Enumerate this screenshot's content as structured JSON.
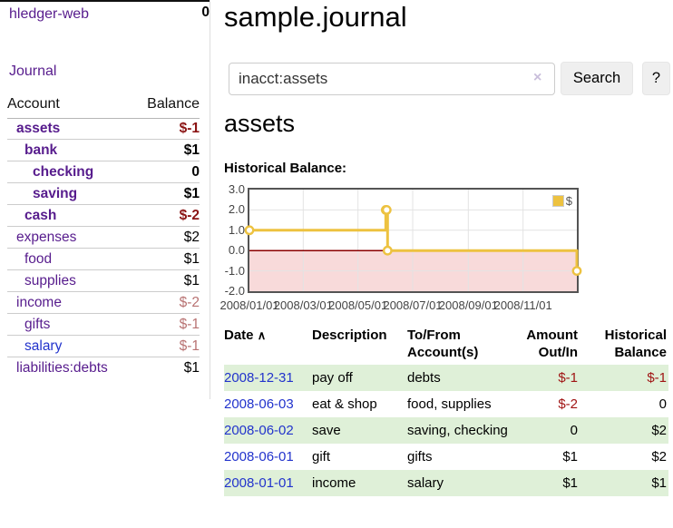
{
  "app": {
    "title": "hledger-web"
  },
  "colors": {
    "link_purple": "#571c8d",
    "link_blue": "#2233cc",
    "negative_bold_red": "#8b1414",
    "negative_table_red": "#a01414",
    "negative_faded_rose": "#b87272",
    "row_stripe_green": "#dff0d8",
    "chart_line_gold": "#EDC240",
    "chart_negative_pink": "#f8dada",
    "chart_zero_line": "#8b0000"
  },
  "sidebar": {
    "nav_journal": "Journal",
    "accounts_header": {
      "account": "Account",
      "balance": "Balance"
    },
    "accounts": [
      {
        "label": "assets",
        "indent": 0,
        "bold": true,
        "link": "purple",
        "balance": "$-1",
        "balance_style": "neg"
      },
      {
        "label": "bank",
        "indent": 1,
        "bold": true,
        "link": "purple",
        "balance": "$1",
        "balance_style": ""
      },
      {
        "label": "checking",
        "indent": 2,
        "bold": true,
        "link": "purple",
        "balance": "0",
        "balance_style": ""
      },
      {
        "label": "saving",
        "indent": 2,
        "bold": true,
        "link": "purple",
        "balance": "$1",
        "balance_style": ""
      },
      {
        "label": "cash",
        "indent": 1,
        "bold": true,
        "link": "purple",
        "balance": "$-2",
        "balance_style": "neg"
      },
      {
        "label": "expenses",
        "indent": 0,
        "bold": false,
        "link": "purple",
        "balance": "$2",
        "balance_style": ""
      },
      {
        "label": "food",
        "indent": 1,
        "bold": false,
        "link": "purple",
        "balance": "$1",
        "balance_style": ""
      },
      {
        "label": "supplies",
        "indent": 1,
        "bold": false,
        "link": "purple",
        "balance": "$1",
        "balance_style": ""
      },
      {
        "label": "income",
        "indent": 0,
        "bold": false,
        "link": "purple",
        "balance": "$-2",
        "balance_style": "faded"
      },
      {
        "label": "gifts",
        "indent": 1,
        "bold": false,
        "link": "purple",
        "balance": "$-1",
        "balance_style": "faded"
      },
      {
        "label": "salary",
        "indent": 1,
        "bold": false,
        "link": "blue",
        "balance": "$-1",
        "balance_style": "faded"
      },
      {
        "label": "liabilities:debts",
        "indent": 0,
        "bold": false,
        "link": "purple",
        "balance": "$1",
        "balance_style": ""
      }
    ],
    "total": "0"
  },
  "main": {
    "title": "sample.journal",
    "search": {
      "value": "inacct:assets",
      "clear_icon": "×",
      "button_label": "Search",
      "help_label": "?"
    },
    "account_heading": "assets",
    "chart_heading": "Historical Balance:"
  },
  "chart_data": {
    "type": "line",
    "title": "Historical Balance",
    "step": true,
    "x_range": [
      "2008-01-01",
      "2008-12-31"
    ],
    "ylim": [
      -2,
      3
    ],
    "y_ticks": [
      {
        "value": 3,
        "label": "3.0"
      },
      {
        "value": 2,
        "label": "2.0"
      },
      {
        "value": 1,
        "label": "1.0"
      },
      {
        "value": 0,
        "label": "0.0"
      },
      {
        "value": -1,
        "label": "-1.0"
      },
      {
        "value": -2,
        "label": "-2.0"
      }
    ],
    "x_ticks": [
      {
        "date": "2008-01-01",
        "label": "2008/01/01"
      },
      {
        "date": "2008-03-01",
        "label": "2008/03/01"
      },
      {
        "date": "2008-05-01",
        "label": "2008/05/01"
      },
      {
        "date": "2008-07-01",
        "label": "2008/07/01"
      },
      {
        "date": "2008-09-01",
        "label": "2008/09/01"
      },
      {
        "date": "2008-11-01",
        "label": "2008/11/01"
      }
    ],
    "series": [
      {
        "name": "$",
        "color": "#EDC240",
        "points": [
          {
            "date": "2008-01-01",
            "value": 1
          },
          {
            "date": "2008-06-01",
            "value": 2
          },
          {
            "date": "2008-06-02",
            "value": 2
          },
          {
            "date": "2008-06-03",
            "value": 0
          },
          {
            "date": "2008-12-31",
            "value": -1
          }
        ]
      }
    ],
    "legend_position": "top-right",
    "grid": true,
    "negative_region_color": "#f8dada",
    "zero_line_color": "#8b0000",
    "grid_color": "#e3e3e3"
  },
  "register": {
    "columns": {
      "date": "Date",
      "description": "Description",
      "accounts": "To/From Account(s)",
      "amount": "Amount Out/In",
      "balance": "Historical Balance"
    },
    "sort_icon": "∧",
    "rows": [
      {
        "date": "2008-12-31",
        "description": "pay off",
        "accounts": "debts",
        "amount": "$-1",
        "amount_negative": true,
        "balance": "$-1",
        "balance_negative": true
      },
      {
        "date": "2008-06-03",
        "description": "eat & shop",
        "accounts": "food, supplies",
        "amount": "$-2",
        "amount_negative": true,
        "balance": "0",
        "balance_negative": false
      },
      {
        "date": "2008-06-02",
        "description": "save",
        "accounts": "saving, checking",
        "amount": "0",
        "amount_negative": false,
        "balance": "$2",
        "balance_negative": false
      },
      {
        "date": "2008-06-01",
        "description": "gift",
        "accounts": "gifts",
        "amount": "$1",
        "amount_negative": false,
        "balance": "$2",
        "balance_negative": false
      },
      {
        "date": "2008-01-01",
        "description": "income",
        "accounts": "salary",
        "amount": "$1",
        "amount_negative": false,
        "balance": "$1",
        "balance_negative": false
      }
    ]
  }
}
